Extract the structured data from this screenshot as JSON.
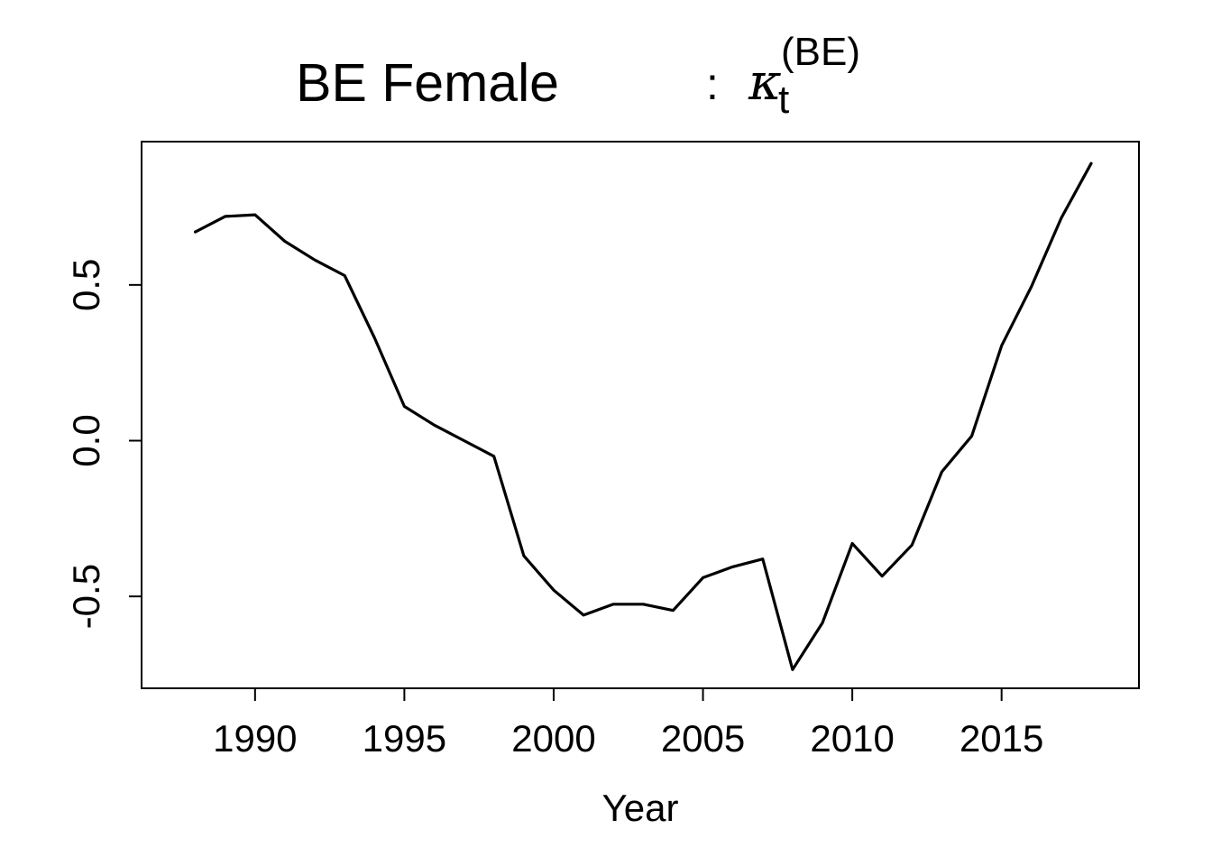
{
  "chart_data": {
    "type": "line",
    "title": {
      "main": "BE Female",
      "separator": ":",
      "symbol": "κ",
      "subscript": "t",
      "superscript": "(BE)"
    },
    "xlabel": "Year",
    "ylabel": "",
    "xlim": [
      1986.2,
      2019.6
    ],
    "ylim": [
      -0.795,
      0.96
    ],
    "x_ticks": [
      1990,
      1995,
      2000,
      2005,
      2010,
      2015
    ],
    "x_tick_labels": [
      "1990",
      "1995",
      "2000",
      "2005",
      "2010",
      "2015"
    ],
    "y_ticks": [
      -0.5,
      0.0,
      0.5
    ],
    "y_tick_labels": [
      "-0.5",
      "0.0",
      "0.5"
    ],
    "grid": false,
    "legend": "none",
    "line_color": "#000000",
    "series": [
      {
        "x": [
          1988,
          1989,
          1990,
          1991,
          1992,
          1993,
          1994,
          1995,
          1996,
          1997,
          1998,
          1999,
          2000,
          2001,
          2002,
          2003,
          2004,
          2005,
          2006,
          2007,
          2008,
          2009,
          2010,
          2011,
          2012,
          2013,
          2014,
          2015,
          2016,
          2017,
          2018
        ],
        "values": [
          0.67,
          0.72,
          0.725,
          0.64,
          0.58,
          0.53,
          0.33,
          0.11,
          0.05,
          0.0,
          -0.05,
          -0.37,
          -0.48,
          -0.56,
          -0.525,
          -0.525,
          -0.545,
          -0.44,
          -0.405,
          -0.38,
          -0.735,
          -0.585,
          -0.33,
          -0.435,
          -0.335,
          -0.1,
          0.015,
          0.305,
          0.495,
          0.715,
          0.89
        ]
      }
    ]
  }
}
